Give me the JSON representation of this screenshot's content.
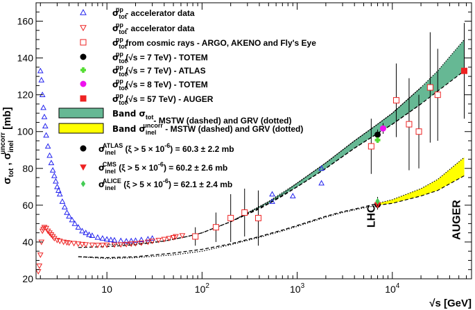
{
  "chart_data": {
    "type": "scatter",
    "title": "",
    "xlabel": "√s [GeV]",
    "ylabel_parts": [
      "σ",
      "tot",
      " , σ",
      "inel",
      "uncorr",
      " [mb]"
    ],
    "xscale": "log",
    "xlim": [
      1.8,
      68000
    ],
    "ylim": [
      20,
      170
    ],
    "xticks": [
      {
        "value": 10,
        "base": "10",
        "exp": ""
      },
      {
        "value": 100,
        "base": "10",
        "exp": "2"
      },
      {
        "value": 1000,
        "base": "10",
        "exp": "3"
      },
      {
        "value": 10000,
        "base": "10",
        "exp": "4"
      }
    ],
    "yticks": [
      20,
      40,
      60,
      80,
      100,
      120,
      140,
      160
    ],
    "annotations": [
      {
        "text": "LHC",
        "x": 7000,
        "y": 54
      },
      {
        "text": "AUGER",
        "x": 57000,
        "y": 52
      }
    ],
    "legend": [
      {
        "symbol": "triangle-up-open",
        "color": "#2222ee",
        "main": "σ",
        "sub": "tot",
        "sup": "p̅p",
        "label": " - accelerator data"
      },
      {
        "symbol": "triangle-down-open",
        "color": "#ee2222",
        "main": "σ",
        "sub": "tot",
        "sup": "pp",
        "label": " - accelerator data"
      },
      {
        "symbol": "square-open",
        "color": "#ee2222",
        "main": "σ",
        "sub": "tot",
        "sup": "pp",
        "label": " from cosmic rays - ARGO, AKENO and Fly's Eye"
      },
      {
        "symbol": "circle",
        "color": "#000000",
        "main": "σ",
        "sub": "tot",
        "sup": "pp",
        "label": " (√s = 7 TeV) - TOTEM"
      },
      {
        "symbol": "cross",
        "color": "#55dd33",
        "main": "σ",
        "sub": "tot",
        "sup": "pp",
        "label": " (√s = 7 TeV) - ATLAS"
      },
      {
        "symbol": "circle",
        "color": "#ee11ee",
        "main": "σ",
        "sub": "tot",
        "sup": "pp",
        "label": " (√s = 8 TeV) - TOTEM"
      },
      {
        "symbol": "square",
        "color": "#ee2222",
        "main": "σ",
        "sub": "tot",
        "sup": "pp",
        "label": " (√s = 57 TeV) - AUGER"
      },
      {
        "symbol": "band",
        "color": "#66b894",
        "main": "Band σ",
        "sub": "tot",
        "sup": "",
        "label": "- MSTW (dashed) and GRV (dotted)"
      },
      {
        "symbol": "band",
        "color": "#ffff00",
        "main": "Band σ",
        "sub": "inel",
        "sup": "uncorr",
        "label": " - MSTW (dashed) and GRV (dotted)"
      }
    ],
    "legend2": [
      {
        "symbol": "circle",
        "color": "#000000",
        "main": "σ",
        "sub": "inel",
        "sup": "ATLAS",
        "label": " (ξ > 5 × 10",
        "exp": "-6",
        "tail": ") = 60.3 ± 2.2 mb"
      },
      {
        "symbol": "triangle-down",
        "color": "#ee2222",
        "main": "σ",
        "sub": "inel",
        "sup": "CMS",
        "label": " (ξ > 5 × 10",
        "exp": "-6",
        "tail": ") = 60.2 ± 2.6 mb"
      },
      {
        "symbol": "diamond",
        "color": "#44cc55",
        "main": "σ",
        "sub": "inel",
        "sup": "ALICE",
        "label": " (ξ > 5 × 10",
        "exp": "-6",
        "tail": ") = 62.1 ± 2.4 mb"
      }
    ],
    "bands": {
      "tot": {
        "color": "#66b894",
        "x": [
          200,
          500,
          1000,
          2000,
          4000,
          7000,
          10000,
          20000,
          30000,
          57000
        ],
        "upper": [
          51,
          62,
          72,
          83,
          95,
          104,
          110,
          124,
          133,
          150
        ],
        "lower": [
          51,
          61,
          70,
          80,
          91,
          99,
          104,
          115,
          122,
          133
        ]
      },
      "inel": {
        "color": "#ffff00",
        "x": [
          7000,
          10000,
          20000,
          30000,
          57000
        ],
        "upper": [
          61,
          63,
          69,
          74,
          86
        ],
        "lower": [
          60,
          61,
          65,
          68,
          76
        ]
      }
    },
    "curves": {
      "tot_mstw": {
        "x": [
          5,
          10,
          20,
          40,
          70,
          100,
          200,
          400,
          700,
          1000,
          2000,
          4000,
          7000,
          10000,
          20000
        ],
        "y": [
          37,
          37.5,
          38.5,
          40.5,
          43,
          45,
          51,
          58,
          65,
          70,
          80,
          91,
          99,
          104,
          115
        ]
      },
      "tot_grv": {
        "x": [
          10,
          20,
          40,
          70,
          100,
          200,
          400,
          700,
          1000,
          2000,
          4000,
          7000,
          10000,
          20000
        ],
        "y": [
          38.5,
          39,
          40.5,
          43,
          45,
          51,
          59,
          66,
          72,
          83,
          95,
          104,
          110,
          124
        ]
      },
      "inel_mstw": {
        "x": [
          5,
          10,
          20,
          50,
          100,
          200,
          400,
          700,
          1000,
          2000,
          3000,
          5000,
          7000
        ],
        "y": [
          32,
          31.5,
          32,
          34,
          36,
          39,
          43,
          46.5,
          49,
          54,
          56.5,
          59,
          61
        ]
      },
      "inel_grv": {
        "x": [
          5,
          10,
          20,
          50,
          100,
          200,
          400,
          700,
          1000,
          2000,
          3000,
          5000,
          7000
        ],
        "y": [
          32,
          31,
          31.5,
          33,
          35,
          38.5,
          42.5,
          46,
          48.5,
          53.5,
          56,
          58.5,
          60
        ]
      }
    },
    "series": [
      {
        "name": "pbar-p total (accelerator)",
        "marker": "triangle-up-open",
        "color": "#2222ee",
        "x": [
          2.0,
          2.05,
          2.1,
          2.15,
          2.2,
          2.25,
          2.3,
          2.4,
          2.5,
          2.6,
          2.7,
          2.8,
          2.9,
          3.0,
          3.1,
          3.2,
          3.4,
          3.6,
          3.8,
          4.0,
          4.3,
          4.6,
          5.0,
          5.5,
          6.0,
          6.5,
          7.0,
          8.0,
          9.0,
          10,
          11,
          12,
          14,
          16,
          18,
          20,
          23,
          27,
          30,
          546,
          546,
          900,
          1800,
          1800
        ],
        "y": [
          133,
          128,
          120,
          113,
          108,
          103,
          98,
          92,
          87,
          83,
          79,
          76,
          73,
          70,
          68,
          66,
          62,
          59,
          56,
          54,
          52,
          50,
          48,
          46,
          45,
          44,
          43.5,
          42.5,
          42,
          41.5,
          41.2,
          41,
          40.7,
          40.5,
          40.6,
          40.8,
          41.2,
          41.6,
          42,
          62,
          66,
          65,
          72,
          80
        ]
      },
      {
        "name": "pp total (accelerator)",
        "marker": "triangle-down-open",
        "color": "#ee2222",
        "x": [
          1.9,
          1.95,
          2.0,
          2.05,
          2.1,
          2.15,
          2.2,
          2.3,
          2.4,
          2.5,
          2.6,
          2.7,
          2.8,
          3.0,
          3.2,
          3.5,
          3.8,
          4.0,
          4.5,
          5.0,
          5.5,
          6.0,
          7.0,
          8.0,
          9.0,
          10,
          12,
          14,
          16,
          18,
          20,
          23,
          27,
          30,
          35,
          40,
          45,
          50,
          53,
          62
        ],
        "y": [
          24,
          27,
          33,
          40,
          46,
          47,
          48,
          47.5,
          46,
          45,
          44,
          43,
          42,
          41,
          40.5,
          40,
          39.7,
          39.5,
          39.3,
          39,
          38.8,
          38.6,
          38.4,
          38.3,
          38.3,
          38.4,
          38.5,
          38.6,
          38.8,
          39,
          39.2,
          39.5,
          40,
          40.5,
          41,
          41.5,
          42,
          42.5,
          43,
          43.5
        ]
      },
      {
        "name": "pp total from cosmic rays",
        "marker": "square-open",
        "color": "#ee2222",
        "x": [
          85,
          140,
          200,
          280,
          390,
          6000,
          11000,
          15000,
          19000,
          25000,
          30000
        ],
        "y": [
          43,
          48,
          53,
          56,
          53,
          92,
          117,
          104,
          100,
          124,
          120
        ],
        "err": [
          5,
          8,
          13,
          13,
          15,
          15,
          20,
          25,
          20,
          30,
          25
        ]
      },
      {
        "name": "TOTEM 7 TeV",
        "marker": "circle",
        "color": "#000000",
        "x": [
          7000
        ],
        "y": [
          98.3
        ],
        "err": [
          2.8
        ]
      },
      {
        "name": "ATLAS 7 TeV",
        "marker": "cross",
        "color": "#55dd33",
        "x": [
          7000
        ],
        "y": [
          95.4
        ],
        "err": [
          1.4
        ]
      },
      {
        "name": "TOTEM 8 TeV",
        "marker": "circle",
        "color": "#ee11ee",
        "x": [
          8000
        ],
        "y": [
          101.7
        ],
        "err": [
          2.9
        ]
      },
      {
        "name": "AUGER 57 TeV",
        "marker": "square",
        "color": "#ee2222",
        "x": [
          57000
        ],
        "y": [
          133
        ],
        "err": [
          26
        ]
      },
      {
        "name": "ATLAS inelastic",
        "marker": "circle",
        "color": "#000000",
        "x": [
          7000
        ],
        "y": [
          60.3
        ],
        "err": [
          2.2
        ]
      },
      {
        "name": "CMS inelastic",
        "marker": "triangle-down",
        "color": "#ee2222",
        "x": [
          7000
        ],
        "y": [
          60.2
        ],
        "err": [
          2.6
        ]
      },
      {
        "name": "ALICE inelastic",
        "marker": "diamond",
        "color": "#44cc55",
        "x": [
          7000
        ],
        "y": [
          62.1
        ],
        "err": [
          2.4
        ]
      }
    ]
  }
}
